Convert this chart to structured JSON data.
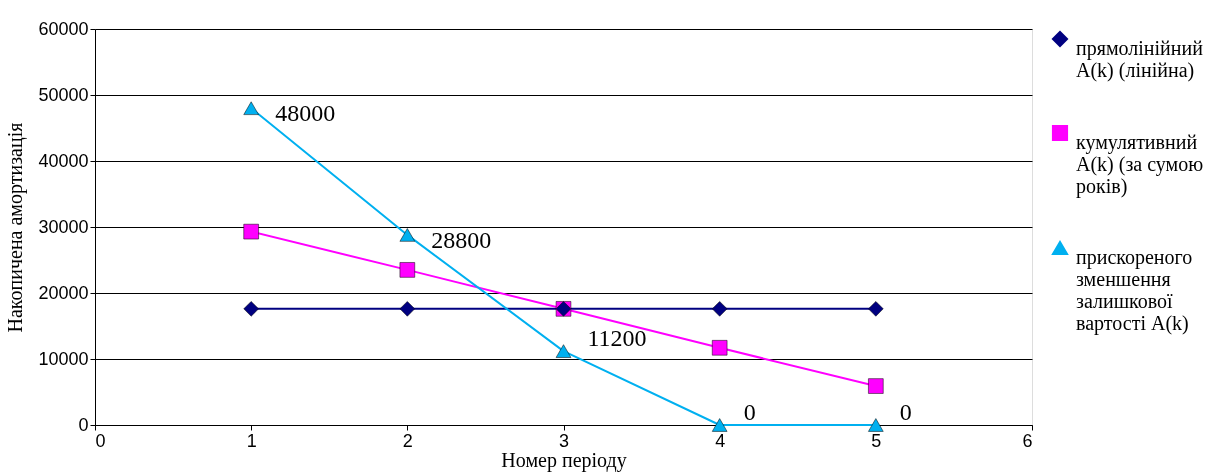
{
  "chart_data": {
    "type": "line",
    "ylabel": "Накопичена амортизація",
    "xlabel": "Номер періоду",
    "x": [
      1,
      2,
      3,
      4,
      5
    ],
    "xlim": [
      0,
      6
    ],
    "xticks": [
      0,
      1,
      2,
      3,
      4,
      5,
      6
    ],
    "ylim": [
      0,
      60000
    ],
    "yticks": [
      0,
      10000,
      20000,
      30000,
      40000,
      50000,
      60000
    ],
    "grid": "y",
    "legend": "right",
    "line_style": "solid",
    "series": [
      {
        "name": "прямолінійний A(k) (лінійна)",
        "color": "#000080",
        "marker": "diamond",
        "values": [
          17600,
          17600,
          17600,
          17600,
          17600
        ]
      },
      {
        "name": "кумулятивний A(k) (за сумою років)",
        "color": "#ff00ff",
        "marker": "square",
        "values": [
          29300,
          23500,
          17600,
          11700,
          5900
        ]
      },
      {
        "name": "прискореного зменшення залишкової вартості A(k)",
        "color": "#00b0f0",
        "marker": "triangle",
        "values": [
          48000,
          28800,
          11200,
          0,
          0
        ],
        "value_labels": [
          "48000",
          "28800",
          "11200",
          "0",
          "0"
        ]
      }
    ]
  }
}
